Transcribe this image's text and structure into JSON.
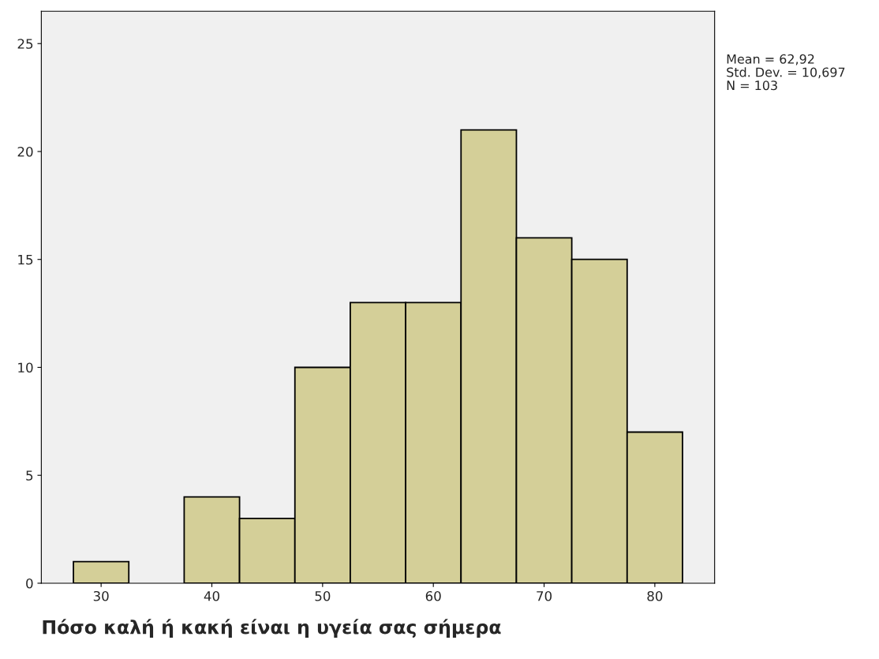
{
  "chart_data": {
    "type": "histogram",
    "xlabel": "Πόσο καλή ή κακή είναι η υγεία σας σήμερα",
    "bins": [
      27.5,
      32.5,
      37.5,
      42.5,
      47.5,
      52.5,
      57.5,
      62.5,
      67.5,
      72.5,
      77.5,
      82.5
    ],
    "values": [
      1,
      0,
      4,
      3,
      10,
      13,
      13,
      21,
      16,
      15,
      7
    ],
    "color": "#d4cf98",
    "xlim": [
      24.6,
      85.4
    ],
    "xticks": [
      30,
      40,
      50,
      60,
      70,
      80
    ],
    "ylim": [
      0,
      26.5
    ],
    "yticks": [
      0,
      5,
      10,
      15,
      20,
      25
    ],
    "grid": false,
    "annotations": [
      "Mean = 62,92",
      "Std. Dev. = 10,697",
      "N = 103"
    ]
  }
}
